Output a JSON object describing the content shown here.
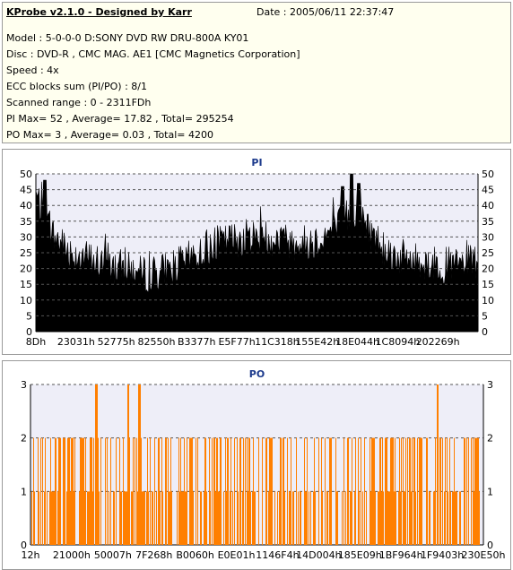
{
  "header": {
    "title": "KProbe v2.1.0 - Designed by Karr",
    "date": "Date : 2005/06/11 22:37:47",
    "lines": [
      "Model : 5-0-0-0 D:SONY     DVD RW DRU-800A  KY01",
      "Disc : DVD-R , CMC MAG. AE1 [CMC Magnetics Corporation]",
      "Speed : 4x",
      "ECC blocks sum (PI/PO) : 8/1",
      "Scanned range : 0 - 2311FDh",
      "PI Max= 52 , Average= 17.82 , Total= 295254",
      "PO Max= 3 , Average= 0.03 , Total= 4200"
    ]
  },
  "colors": {
    "pi_bars": "#000000",
    "po_bars": "#ff7f00",
    "plot_bg": "#eeeef8",
    "grid": "#555555",
    "title": "#1c3a8c"
  },
  "chart_data": [
    {
      "type": "bar",
      "title": "PI",
      "xlabel": "",
      "ylabel": "",
      "x_tick_labels": [
        "8Dh",
        "23031h",
        "52775h",
        "82550h",
        "B3377h",
        "E5F77h",
        "11C318h",
        "155E42h",
        "18E044h",
        "1C8094h",
        "202269h"
      ],
      "y_ticks": [
        0,
        5,
        10,
        15,
        20,
        25,
        30,
        35,
        40,
        45,
        50
      ],
      "ylim": [
        0,
        50
      ],
      "grid": true,
      "profile_x": [
        0,
        0.015,
        0.04,
        0.08,
        0.12,
        0.16,
        0.2,
        0.24,
        0.28,
        0.32,
        0.36,
        0.4,
        0.44,
        0.48,
        0.52,
        0.56,
        0.6,
        0.64,
        0.68,
        0.7,
        0.72,
        0.74,
        0.76,
        0.78,
        0.8,
        0.84,
        0.88,
        0.92,
        0.96,
        1.0
      ],
      "profile_y": [
        43,
        38,
        30,
        25,
        23,
        21,
        20,
        18,
        19,
        21,
        24,
        27,
        29,
        30,
        30,
        29,
        28,
        29,
        33,
        36,
        38,
        36,
        31,
        28,
        25,
        23,
        22,
        21,
        21,
        22
      ],
      "peaks": [
        {
          "x": 0.02,
          "y": 48
        },
        {
          "x": 0.695,
          "y": 46
        },
        {
          "x": 0.715,
          "y": 50
        },
        {
          "x": 0.73,
          "y": 47
        }
      ]
    },
    {
      "type": "bar",
      "title": "PO",
      "xlabel": "",
      "ylabel": "",
      "x_tick_labels": [
        "12h",
        "21000h",
        "50007h",
        "7F268h",
        "B0060h",
        "E0E01h",
        "1146F4h",
        "14D004h",
        "185E09h",
        "1BF964h",
        "1F9403h",
        "230E50h"
      ],
      "y_ticks": [
        0,
        1,
        2,
        3
      ],
      "ylim": [
        0,
        3
      ],
      "grid": true,
      "value_3_at": [
        0.145,
        0.215,
        0.24,
        0.9
      ],
      "value_2_density": 0.35,
      "value_1_density": 0.3
    }
  ]
}
